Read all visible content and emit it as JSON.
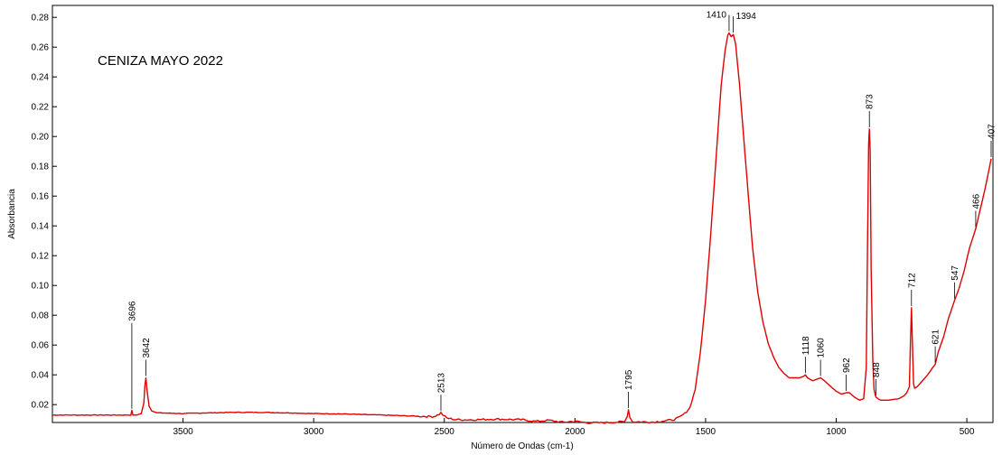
{
  "chart_data": {
    "type": "line",
    "title": "",
    "annotation": "CENIZA MAYO 2022",
    "xlabel": "Número de Ondas (cm-1)",
    "ylabel": "Absorbancia",
    "xlim": [
      4000,
      400
    ],
    "ylim": [
      0.008,
      0.288
    ],
    "x_reversed": true,
    "grid": false,
    "line_color": "#e00000",
    "x_ticks": [
      3500,
      3000,
      2500,
      2000,
      1500,
      1000,
      500
    ],
    "x_tick_labels": [
      "3500",
      "3000",
      "2500",
      "2000",
      "1500",
      "1000",
      "500"
    ],
    "y_ticks": [
      0.02,
      0.04,
      0.06,
      0.08,
      0.1,
      0.12,
      0.14,
      0.16,
      0.18,
      0.2,
      0.22,
      0.24,
      0.26,
      0.28
    ],
    "y_tick_labels": [
      "0.02",
      "0.04",
      "0.06",
      "0.08",
      "0.10",
      "0.12",
      "0.14",
      "0.16",
      "0.18",
      "0.20",
      "0.22",
      "0.24",
      "0.26",
      "0.28"
    ],
    "series": [
      {
        "x": [
          4000,
          3900,
          3800,
          3730,
          3700,
          3696,
          3692,
          3680,
          3660,
          3650,
          3646,
          3642,
          3638,
          3630,
          3620,
          3600,
          3500,
          3400,
          3300,
          3200,
          3100,
          3000,
          2900,
          2800,
          2700,
          2600,
          2540,
          2520,
          2513,
          2505,
          2490,
          2460,
          2400,
          2300,
          2200,
          2150,
          2100,
          2050,
          2000,
          1950,
          1900,
          1850,
          1810,
          1800,
          1795,
          1790,
          1780,
          1700,
          1650,
          1620,
          1600,
          1580,
          1560,
          1540,
          1520,
          1500,
          1480,
          1460,
          1440,
          1425,
          1415,
          1410,
          1402,
          1394,
          1385,
          1370,
          1350,
          1320,
          1300,
          1280,
          1260,
          1240,
          1220,
          1200,
          1180,
          1160,
          1140,
          1125,
          1118,
          1110,
          1090,
          1075,
          1060,
          1045,
          1020,
          1000,
          980,
          962,
          950,
          930,
          910,
          895,
          885,
          880,
          876,
          873,
          870,
          866,
          860,
          855,
          850,
          848,
          840,
          830,
          800,
          780,
          760,
          740,
          730,
          720,
          716,
          712,
          708,
          704,
          700,
          690,
          670,
          650,
          630,
          621,
          610,
          590,
          570,
          547,
          530,
          510,
          490,
          466,
          450,
          430,
          415,
          407
        ],
        "y": [
          0.013,
          0.013,
          0.013,
          0.013,
          0.013,
          0.016,
          0.013,
          0.013,
          0.014,
          0.021,
          0.033,
          0.038,
          0.03,
          0.019,
          0.016,
          0.0145,
          0.014,
          0.0145,
          0.0148,
          0.0148,
          0.0145,
          0.014,
          0.0138,
          0.0133,
          0.0128,
          0.0122,
          0.012,
          0.0135,
          0.0145,
          0.013,
          0.011,
          0.01,
          0.0098,
          0.0103,
          0.0098,
          0.0088,
          0.0095,
          0.0082,
          0.0088,
          0.0078,
          0.0078,
          0.0082,
          0.0085,
          0.0125,
          0.0165,
          0.0118,
          0.0085,
          0.0083,
          0.0092,
          0.01,
          0.0115,
          0.014,
          0.018,
          0.03,
          0.055,
          0.09,
          0.135,
          0.185,
          0.235,
          0.258,
          0.268,
          0.2695,
          0.267,
          0.2685,
          0.262,
          0.235,
          0.19,
          0.125,
          0.095,
          0.075,
          0.061,
          0.052,
          0.045,
          0.041,
          0.038,
          0.038,
          0.038,
          0.039,
          0.04,
          0.038,
          0.036,
          0.037,
          0.038,
          0.036,
          0.032,
          0.029,
          0.027,
          0.028,
          0.028,
          0.025,
          0.023,
          0.024,
          0.045,
          0.13,
          0.195,
          0.205,
          0.19,
          0.11,
          0.05,
          0.03,
          0.026,
          0.025,
          0.024,
          0.023,
          0.023,
          0.0235,
          0.024,
          0.026,
          0.028,
          0.032,
          0.06,
          0.085,
          0.06,
          0.034,
          0.031,
          0.032,
          0.036,
          0.04,
          0.045,
          0.047,
          0.055,
          0.065,
          0.078,
          0.09,
          0.098,
          0.11,
          0.125,
          0.138,
          0.15,
          0.165,
          0.178,
          0.185
        ]
      }
    ],
    "peaks": [
      {
        "x": 3696,
        "label": "3696"
      },
      {
        "x": 3642,
        "label": "3642"
      },
      {
        "x": 2513,
        "label": "2513"
      },
      {
        "x": 1795,
        "label": "1795"
      },
      {
        "x": 1410,
        "label": "1410"
      },
      {
        "x": 1394,
        "label": "1394"
      },
      {
        "x": 1118,
        "label": "1118"
      },
      {
        "x": 1060,
        "label": "1060"
      },
      {
        "x": 962,
        "label": "962"
      },
      {
        "x": 873,
        "label": "873"
      },
      {
        "x": 848,
        "label": "848"
      },
      {
        "x": 712,
        "label": "712"
      },
      {
        "x": 621,
        "label": "621"
      },
      {
        "x": 547,
        "label": "547"
      },
      {
        "x": 466,
        "label": "466"
      },
      {
        "x": 407,
        "label": "407"
      }
    ]
  }
}
